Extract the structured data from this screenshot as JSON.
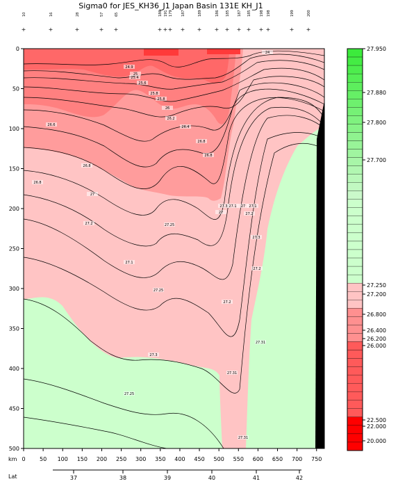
{
  "title": "Sigma0 for JES_KH36_J1 Japan Basin 131E KH_J1",
  "x_axis": {
    "label": "km",
    "ticks": [
      "0",
      "50",
      "100",
      "150",
      "200",
      "250",
      "300",
      "350",
      "400",
      "450",
      "500",
      "550",
      "600",
      "650",
      "700",
      "750"
    ]
  },
  "lat_axis": {
    "label": "Lat",
    "ticks": [
      "37",
      "38",
      "39",
      "40",
      "41",
      "42"
    ]
  },
  "y_axis": {
    "ticks": [
      "0",
      "50",
      "100",
      "150",
      "200",
      "250",
      "300",
      "350",
      "400",
      "450",
      "500"
    ]
  },
  "stations": [
    "10",
    "16",
    "28",
    "57",
    "65",
    "179",
    "186",
    "191",
    "187",
    "189",
    "186",
    "185",
    "187",
    "185",
    "198",
    "198",
    "199",
    "200"
  ],
  "colorbar": {
    "labels": [
      "27.950",
      "27.880",
      "27.800",
      "27.700",
      "27.250",
      "27.200",
      "26.800",
      "26.400",
      "26.200",
      "26.000",
      "22.500",
      "22.000",
      "20.000"
    ],
    "colors": {
      "high": "#33dd33",
      "mid": "#ccffcc",
      "low_pink": "#ffc4c4",
      "red": "#ff7070",
      "deep_red": "#ff0000"
    }
  },
  "contour_labels": [
    "24",
    "24.9",
    "25",
    "25.4",
    "25.6",
    "25.8",
    "25.8",
    "26",
    "26.2",
    "26.4",
    "26.6",
    "26.8",
    "26.8",
    "26.8",
    "26.8",
    "27",
    "27.1",
    "27",
    "27",
    "27.2",
    "27.3",
    "27.2",
    "27.25",
    "27.1",
    "27.2",
    "27.2",
    "27.25",
    "27.3",
    "27.31",
    "27.25",
    "27.31",
    "27.31",
    "27.3",
    "27.1"
  ],
  "chart_data": {
    "type": "heatmap",
    "title": "Sigma0 for JES_KH36_J1 Japan Basin 131E KH_J1",
    "xlabel": "km",
    "ylabel": "",
    "xlim": [
      0,
      770
    ],
    "ylim": [
      500,
      0
    ],
    "contour_levels": [
      24,
      24.9,
      25,
      25.4,
      25.6,
      25.8,
      26,
      26.2,
      26.4,
      26.6,
      26.8,
      27,
      27.1,
      27.2,
      27.25,
      27.3,
      27.31
    ]
  }
}
